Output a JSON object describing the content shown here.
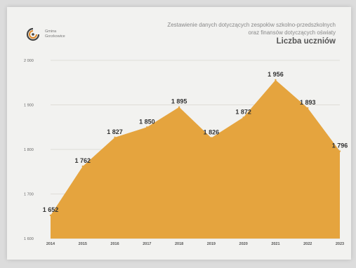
{
  "header": {
    "logo_text_line1": "Gmina",
    "logo_text_line2": "Gorzkowice",
    "subtitle_line1": "Zestawienie danych dotyczących zespołów szkolno-przedszkolnych",
    "subtitle_line2": "oraz finansów dotyczących oświaty",
    "title": "Liczba uczniów"
  },
  "colors": {
    "area": "#e5a43e",
    "gridline": "#d8d6cf",
    "logo_accent": "#e08a2a"
  },
  "chart_data": {
    "type": "area",
    "title": "Liczba uczniów",
    "xlabel": "",
    "ylabel": "",
    "x": [
      "2014",
      "2015",
      "2016",
      "2017",
      "2018",
      "2019",
      "2020",
      "2021",
      "2022",
      "2023"
    ],
    "values": [
      1652,
      1762,
      1827,
      1850,
      1895,
      1826,
      1872,
      1956,
      1893,
      1796
    ],
    "value_labels": [
      "1 652",
      "1 762",
      "1 827",
      "1 850",
      "1 895",
      "1 826",
      "1 872",
      "1 956",
      "1 893",
      "1 796"
    ],
    "ylim": [
      1600,
      2000
    ],
    "y_ticks": [
      1600,
      1700,
      1800,
      1900,
      2000
    ],
    "y_tick_labels": [
      "1 600",
      "1 700",
      "1 800",
      "1 900",
      "2 000"
    ],
    "grid": true,
    "legend": "none"
  }
}
